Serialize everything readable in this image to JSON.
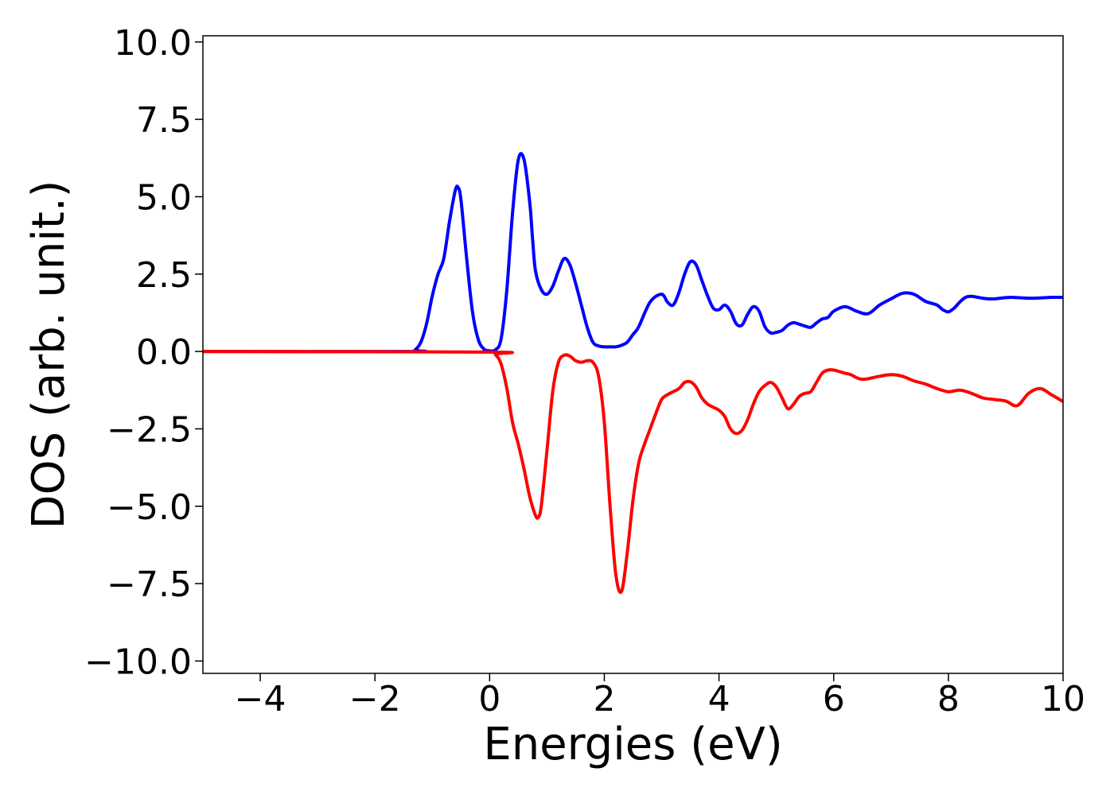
{
  "chart_data": {
    "type": "line",
    "title": "",
    "xlabel": "Energies (eV)",
    "ylabel": "DOS (arb. unit.)",
    "xlim": [
      -5,
      10
    ],
    "ylim": [
      -10.4,
      10.2
    ],
    "grid": false,
    "legend": "none",
    "xticks": [
      -4,
      -2,
      0,
      2,
      4,
      6,
      8,
      10
    ],
    "xtick_labels": [
      "−4",
      "−2",
      "0",
      "2",
      "4",
      "6",
      "8",
      "10"
    ],
    "yticks": [
      10,
      7.5,
      5,
      2.5,
      0,
      -2.5,
      -5,
      -7.5,
      -10
    ],
    "ytick_labels": [
      "10.0",
      "7.5",
      "5.0",
      "2.5",
      "0.0",
      "−2.5",
      "−5.0",
      "−7.5",
      "−10.0"
    ],
    "series": [
      {
        "color": "#0000ff",
        "x": [
          -5,
          -1.4,
          -1.3,
          -1.2,
          -1.1,
          -1.0,
          -0.9,
          -0.8,
          -0.7,
          -0.6,
          -0.55,
          -0.5,
          -0.4,
          -0.3,
          -0.2,
          -0.1,
          0.0,
          0.1,
          0.2,
          0.3,
          0.4,
          0.5,
          0.6,
          0.7,
          0.75,
          0.8,
          0.9,
          1.0,
          1.1,
          1.2,
          1.3,
          1.4,
          1.5,
          1.6,
          1.7,
          1.8,
          1.9,
          2.0,
          2.1,
          2.2,
          2.3,
          2.4,
          2.5,
          2.6,
          2.8,
          3.0,
          3.1,
          3.2,
          3.3,
          3.4,
          3.5,
          3.6,
          3.7,
          3.8,
          3.9,
          4.0,
          4.1,
          4.2,
          4.3,
          4.4,
          4.5,
          4.6,
          4.7,
          4.8,
          4.9,
          5.0,
          5.1,
          5.2,
          5.3,
          5.4,
          5.5,
          5.6,
          5.7,
          5.8,
          5.9,
          6.0,
          6.2,
          6.4,
          6.6,
          6.8,
          7.0,
          7.2,
          7.4,
          7.6,
          7.8,
          7.9,
          8.0,
          8.1,
          8.2,
          8.3,
          8.4,
          8.6,
          8.7,
          8.8,
          8.9,
          9.0,
          9.1,
          9.2,
          9.3,
          9.4,
          9.5,
          9.6,
          9.7,
          9.8,
          9.9,
          10.0
        ],
        "values": [
          0,
          0.0,
          0.05,
          0.3,
          0.9,
          1.8,
          2.5,
          3.0,
          4.2,
          5.2,
          5.3,
          4.9,
          3.0,
          1.3,
          0.4,
          0.08,
          0.02,
          0.05,
          0.4,
          2.0,
          4.5,
          6.2,
          6.2,
          4.8,
          3.6,
          2.6,
          2.0,
          1.85,
          2.1,
          2.6,
          3.0,
          2.8,
          2.2,
          1.5,
          0.8,
          0.3,
          0.18,
          0.15,
          0.15,
          0.15,
          0.2,
          0.3,
          0.55,
          0.8,
          1.6,
          1.85,
          1.6,
          1.5,
          1.9,
          2.5,
          2.9,
          2.8,
          2.3,
          1.8,
          1.4,
          1.35,
          1.5,
          1.3,
          0.9,
          0.85,
          1.2,
          1.45,
          1.3,
          0.8,
          0.6,
          0.62,
          0.68,
          0.85,
          0.93,
          0.88,
          0.82,
          0.78,
          0.92,
          1.05,
          1.1,
          1.3,
          1.45,
          1.3,
          1.22,
          1.5,
          1.7,
          1.88,
          1.85,
          1.62,
          1.5,
          1.35,
          1.28,
          1.4,
          1.6,
          1.75,
          1.78,
          1.72,
          1.7,
          1.7,
          1.72,
          1.74,
          1.75,
          1.74,
          1.73,
          1.72,
          1.72,
          1.73,
          1.74,
          1.75,
          1.75,
          1.75
        ]
      },
      {
        "color": "#ff0000",
        "x": [
          -5,
          0.0,
          0.1,
          0.2,
          0.3,
          0.4,
          0.5,
          0.6,
          0.7,
          0.8,
          0.85,
          0.9,
          1.0,
          1.1,
          1.2,
          1.3,
          1.4,
          1.5,
          1.6,
          1.7,
          1.8,
          1.9,
          2.0,
          2.1,
          2.2,
          2.3,
          2.4,
          2.5,
          2.6,
          2.7,
          2.8,
          2.9,
          3.0,
          3.1,
          3.2,
          3.3,
          3.4,
          3.5,
          3.6,
          3.7,
          3.8,
          3.9,
          4.0,
          4.1,
          4.2,
          4.3,
          4.4,
          4.5,
          4.6,
          4.7,
          4.8,
          4.9,
          5.0,
          5.1,
          5.2,
          5.3,
          5.4,
          5.5,
          5.6,
          5.7,
          5.8,
          5.9,
          6.0,
          6.1,
          6.2,
          6.3,
          6.4,
          6.5,
          6.6,
          6.8,
          7.0,
          7.2,
          7.4,
          7.6,
          7.8,
          8.0,
          8.2,
          8.4,
          8.6,
          8.8,
          9.0,
          9.2,
          9.4,
          9.6,
          9.8,
          10.0
        ],
        "values": [
          0,
          -0.02,
          -0.1,
          -0.4,
          -1.2,
          -2.3,
          -3.0,
          -3.8,
          -4.7,
          -5.3,
          -5.35,
          -5.0,
          -3.2,
          -1.3,
          -0.35,
          -0.12,
          -0.15,
          -0.3,
          -0.35,
          -0.3,
          -0.35,
          -0.8,
          -2.3,
          -5.0,
          -7.2,
          -7.75,
          -6.5,
          -4.8,
          -3.6,
          -3.0,
          -2.5,
          -2.0,
          -1.55,
          -1.4,
          -1.3,
          -1.2,
          -1.0,
          -0.98,
          -1.15,
          -1.5,
          -1.7,
          -1.8,
          -1.9,
          -2.1,
          -2.5,
          -2.65,
          -2.55,
          -2.2,
          -1.7,
          -1.3,
          -1.1,
          -1.0,
          -1.15,
          -1.5,
          -1.85,
          -1.7,
          -1.45,
          -1.35,
          -1.3,
          -1.0,
          -0.7,
          -0.6,
          -0.6,
          -0.65,
          -0.7,
          -0.75,
          -0.85,
          -0.9,
          -0.88,
          -0.8,
          -0.75,
          -0.8,
          -0.95,
          -1.05,
          -1.2,
          -1.3,
          -1.25,
          -1.35,
          -1.5,
          -1.55,
          -1.6,
          -1.75,
          -1.35,
          -1.2,
          -1.4,
          -1.62
        ]
      }
    ]
  }
}
